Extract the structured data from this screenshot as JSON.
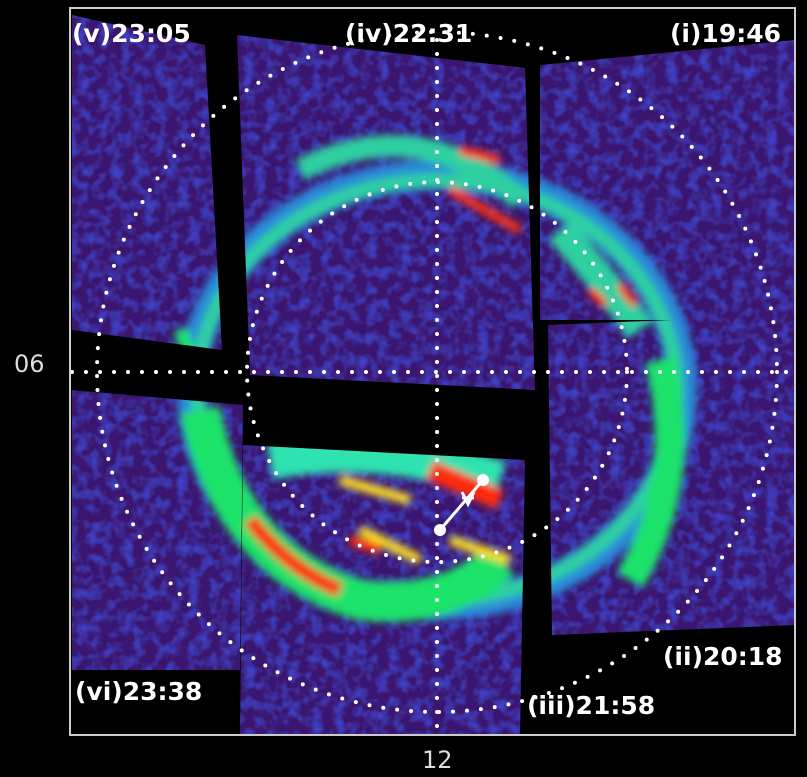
{
  "image": {
    "panels": [
      {
        "label": "(v)23:05"
      },
      {
        "label": "(iv)22:31"
      },
      {
        "label": "(i)19:46"
      },
      {
        "label": "(ii)20:18"
      },
      {
        "label": "(iii)21:58"
      },
      {
        "label": "(vi)23:38"
      }
    ],
    "axis_labels": {
      "left": "06",
      "bottom": "12"
    }
  }
}
